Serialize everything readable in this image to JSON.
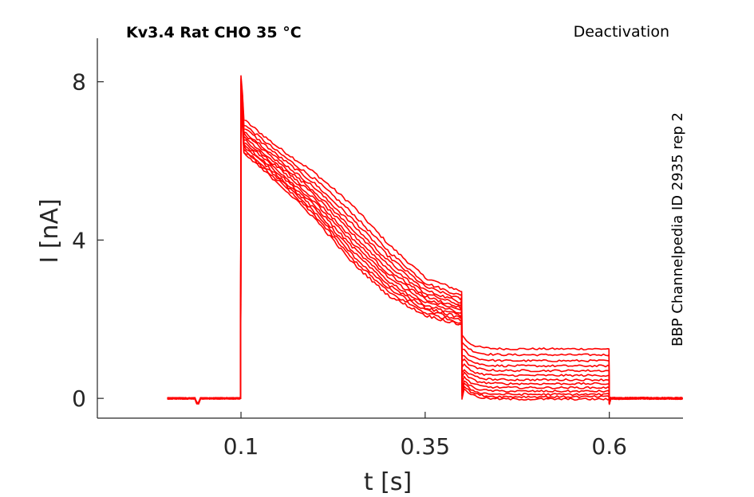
{
  "chart_data": {
    "type": "line",
    "title": "Kv3.4  Rat  CHO  35 °C",
    "protocol": "Deactivation",
    "source_label": "BBP Channelpedia ID 2935 rep 2",
    "xlabel": "t [s]",
    "ylabel": "I [nA]",
    "xlim": [
      -0.095,
      0.7
    ],
    "ylim": [
      -0.5,
      9.1
    ],
    "xticks": [
      0.1,
      0.35,
      0.6
    ],
    "xtick_labels": [
      "0.1",
      "0.35",
      "0.6"
    ],
    "yticks": [
      0,
      4,
      8
    ],
    "ytick_labels": [
      "0",
      "4",
      "8"
    ],
    "grid": false,
    "legend": "none",
    "color": "#ff0000",
    "protocol_times": {
      "start": 0.0,
      "step_on": 0.1,
      "step_off": 0.4,
      "tail_end": 0.6,
      "end": 0.7
    },
    "activation_current": {
      "peak": 8.15,
      "t": [
        0.1,
        0.15,
        0.2,
        0.25,
        0.3,
        0.35,
        0.4
      ],
      "series_low": [
        6.25,
        5.45,
        4.55,
        3.45,
        2.6,
        2.1,
        1.85
      ],
      "series_high": [
        7.1,
        6.35,
        5.7,
        4.9,
        3.9,
        3.05,
        2.7
      ]
    },
    "series": [
      {
        "tail": 1.25
      },
      {
        "tail": 1.1
      },
      {
        "tail": 0.95
      },
      {
        "tail": 0.82
      },
      {
        "tail": 0.7
      },
      {
        "tail": 0.58
      },
      {
        "tail": 0.47
      },
      {
        "tail": 0.37
      },
      {
        "tail": 0.27
      },
      {
        "tail": 0.18
      },
      {
        "tail": 0.1
      },
      {
        "tail": 0.04
      },
      {
        "tail": -0.02
      }
    ]
  }
}
